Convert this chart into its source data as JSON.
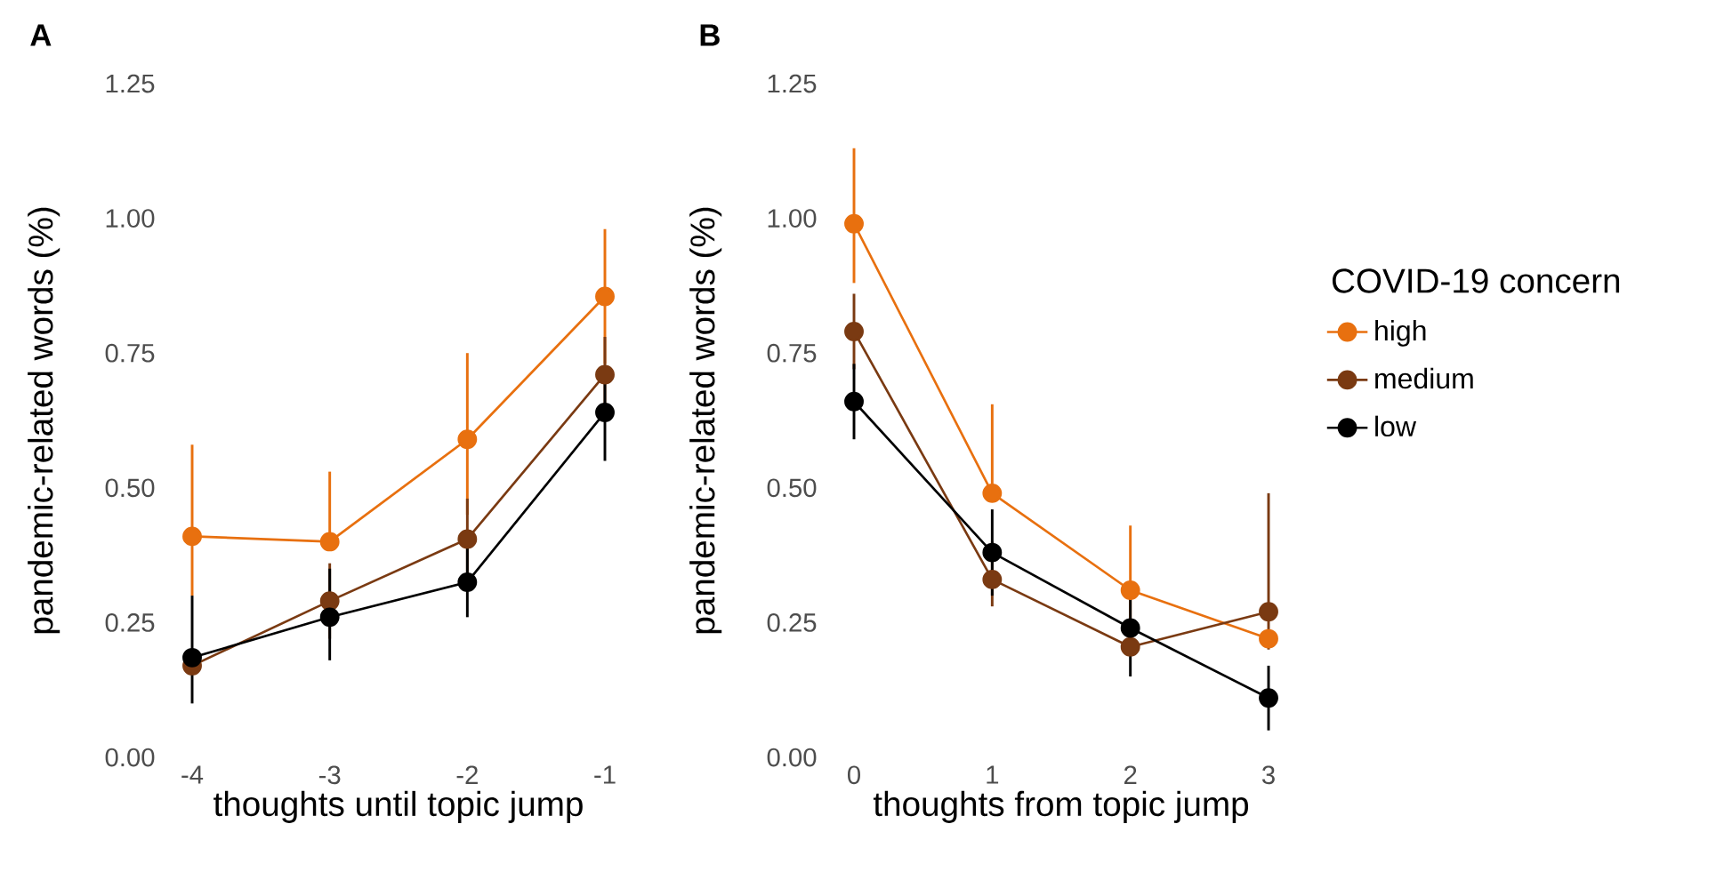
{
  "chart_data": [
    {
      "type": "line",
      "title": "A",
      "xlabel": "thoughts until topic jump",
      "ylabel": "pandemic-related words (%)",
      "x": [
        -4,
        -3,
        -2,
        -1
      ],
      "xlim": [
        -4,
        -1
      ],
      "xticks": [
        -4,
        -3,
        -2,
        -1
      ],
      "ylim": [
        0,
        1.25
      ],
      "yticks": [
        {
          "value": 0,
          "label": "0.00"
        },
        {
          "value": 0.25,
          "label": "0.25"
        },
        {
          "value": 0.5,
          "label": "0.50"
        },
        {
          "value": 0.75,
          "label": "0.75"
        },
        {
          "value": 1,
          "label": "1.00"
        },
        {
          "value": 1.25,
          "label": "1.25"
        }
      ],
      "marker": "circle",
      "line_style": "solid",
      "legend": false,
      "series": [
        {
          "color": "#e8700f",
          "values": [
            0.41,
            0.4,
            0.59,
            0.855
          ],
          "errors": [
            [
              0.3,
              0.58
            ],
            [
              0.4,
              0.53
            ],
            [
              0.45,
              0.75
            ],
            [
              0.73,
              0.98
            ]
          ]
        },
        {
          "color": "#7a3a12",
          "values": [
            0.17,
            0.29,
            0.405,
            0.71
          ],
          "errors": [
            null,
            [
              0.22,
              0.36
            ],
            [
              0.33,
              0.48
            ],
            [
              0.65,
              0.78
            ]
          ]
        },
        {
          "color": "#000000",
          "values": [
            0.185,
            0.26,
            0.325,
            0.64
          ],
          "errors": [
            [
              0.1,
              0.3
            ],
            [
              0.18,
              0.35
            ],
            [
              0.26,
              0.4
            ],
            [
              0.55,
              0.72
            ]
          ]
        }
      ]
    },
    {
      "type": "line",
      "title": "B",
      "xlabel": "thoughts from topic jump",
      "ylabel": "pandemic-related words (%)",
      "legend_title": "COVID-19 concern",
      "x": [
        0,
        1,
        2,
        3
      ],
      "xlim": [
        0,
        3
      ],
      "xticks": [
        0,
        1,
        2,
        3
      ],
      "ylim": [
        0,
        1.25
      ],
      "yticks": [
        {
          "value": 0,
          "label": "0.00"
        },
        {
          "value": 0.25,
          "label": "0.25"
        },
        {
          "value": 0.5,
          "label": "0.50"
        },
        {
          "value": 0.75,
          "label": "0.75"
        },
        {
          "value": 1,
          "label": "1.00"
        },
        {
          "value": 1.25,
          "label": "1.25"
        }
      ],
      "marker": "circle",
      "line_style": "solid",
      "legend": "right",
      "series": [
        {
          "name": "high",
          "color": "#e8700f",
          "values": [
            0.99,
            0.49,
            0.31,
            0.22
          ],
          "errors": [
            [
              0.88,
              1.13
            ],
            [
              0.49,
              0.655
            ],
            [
              0.25,
              0.43
            ],
            null
          ]
        },
        {
          "name": "medium",
          "color": "#7a3a12",
          "values": [
            0.79,
            0.33,
            0.205,
            0.27
          ],
          "errors": [
            [
              0.72,
              0.86
            ],
            [
              0.28,
              0.4
            ],
            null,
            [
              0.2,
              0.49
            ]
          ]
        },
        {
          "name": "low",
          "color": "#000000",
          "values": [
            0.66,
            0.38,
            0.24,
            0.11
          ],
          "errors": [
            [
              0.59,
              0.73
            ],
            [
              0.3,
              0.46
            ],
            [
              0.15,
              0.3
            ],
            [
              0.05,
              0.17
            ]
          ]
        }
      ]
    }
  ]
}
